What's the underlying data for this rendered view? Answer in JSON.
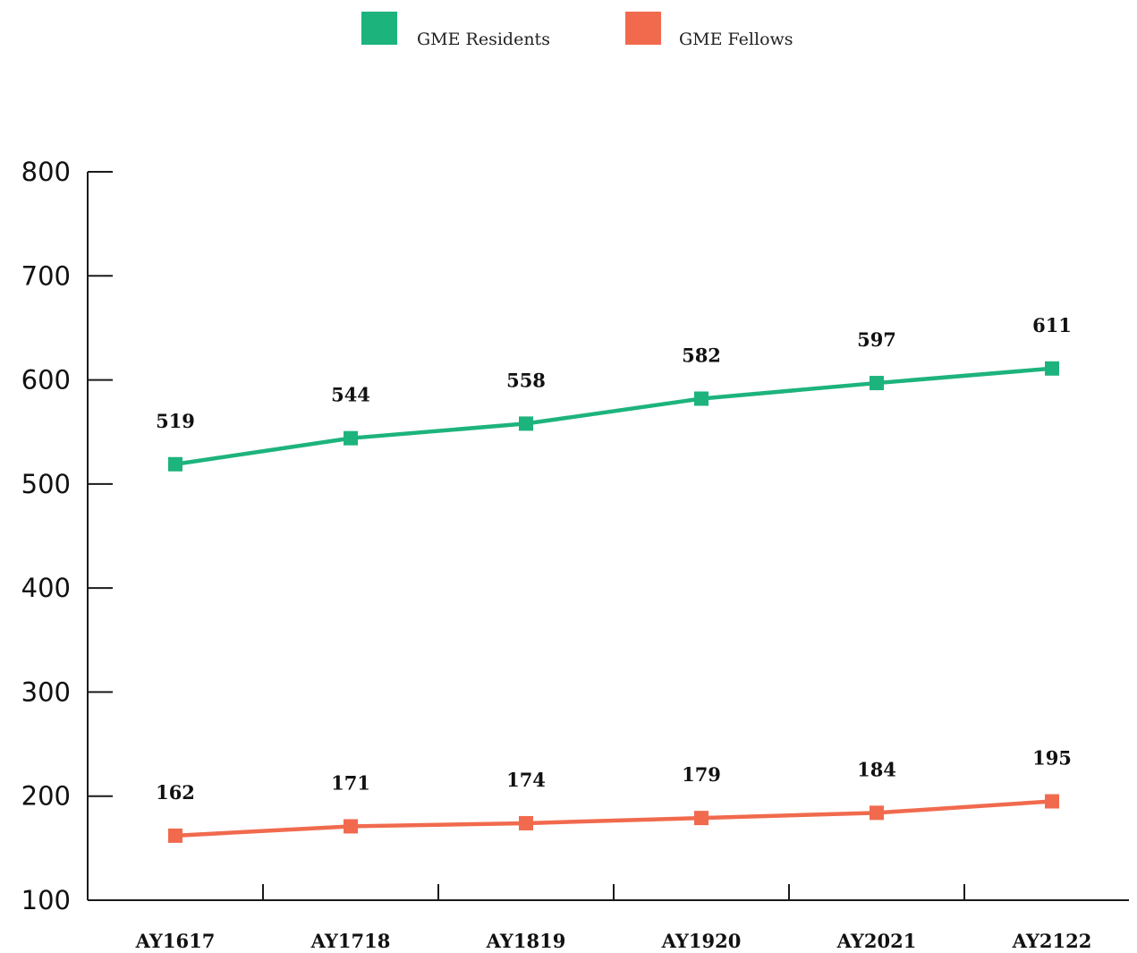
{
  "chart_data": {
    "type": "line",
    "categories": [
      "AY1617",
      "AY1718",
      "AY1819",
      "AY1920",
      "AY2021",
      "AY2122"
    ],
    "series": [
      {
        "name": "GME Residents",
        "color": "#1db37d",
        "values": [
          519,
          544,
          558,
          582,
          597,
          611
        ],
        "labels": [
          "519",
          "544",
          "558",
          "582",
          "597",
          "611"
        ]
      },
      {
        "name": "GME Fellows",
        "color": "#f16a4e",
        "values": [
          162,
          171,
          174,
          179,
          184,
          195
        ],
        "labels": [
          "162",
          "171",
          "174",
          "179",
          "184",
          "195"
        ]
      }
    ],
    "yticks": [
      "100",
      "200",
      "300",
      "400",
      "500",
      "600",
      "700",
      "800"
    ],
    "ylim": [
      100,
      800
    ],
    "grid": false,
    "legend": "top-center",
    "marker": "square"
  }
}
